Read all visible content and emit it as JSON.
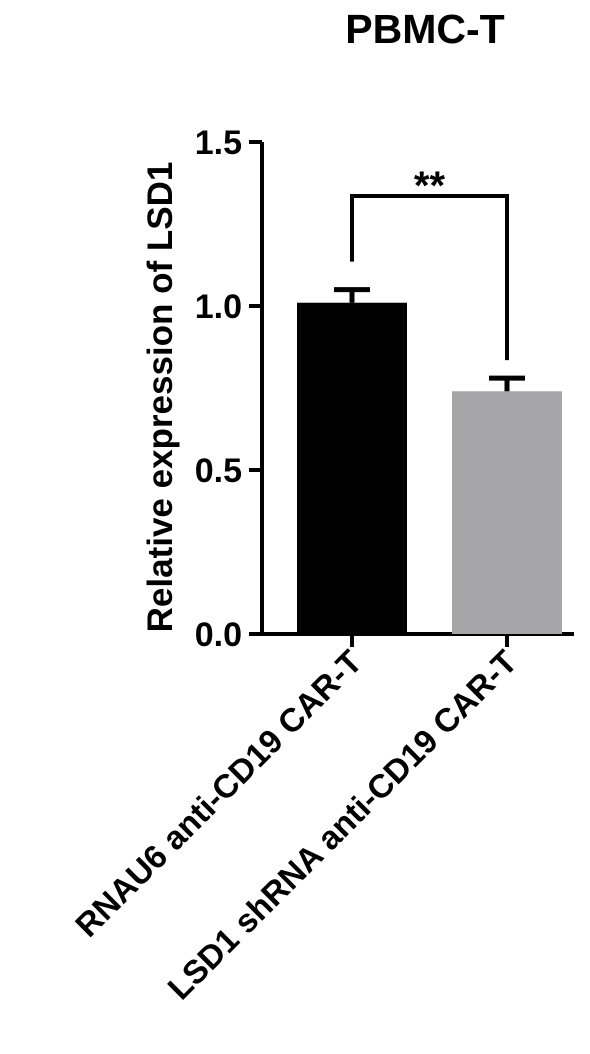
{
  "chart_data": {
    "type": "bar",
    "title": "PBMC-T",
    "ylabel": "Relative expression of LSD1",
    "xlabel": "",
    "categories": [
      "RNAU6 anti-CD19 CAR-T",
      "LSD1 shRNA anti-CD19 CAR-T"
    ],
    "values": [
      1.01,
      0.74
    ],
    "errors": [
      0.04,
      0.04
    ],
    "bar_colors": [
      "#000000",
      "#a6a6a8"
    ],
    "ylim": [
      0,
      1.5
    ],
    "yticks": [
      "0.0",
      "0.5",
      "1.0",
      "1.5"
    ],
    "grid": false,
    "annotation": "**"
  }
}
